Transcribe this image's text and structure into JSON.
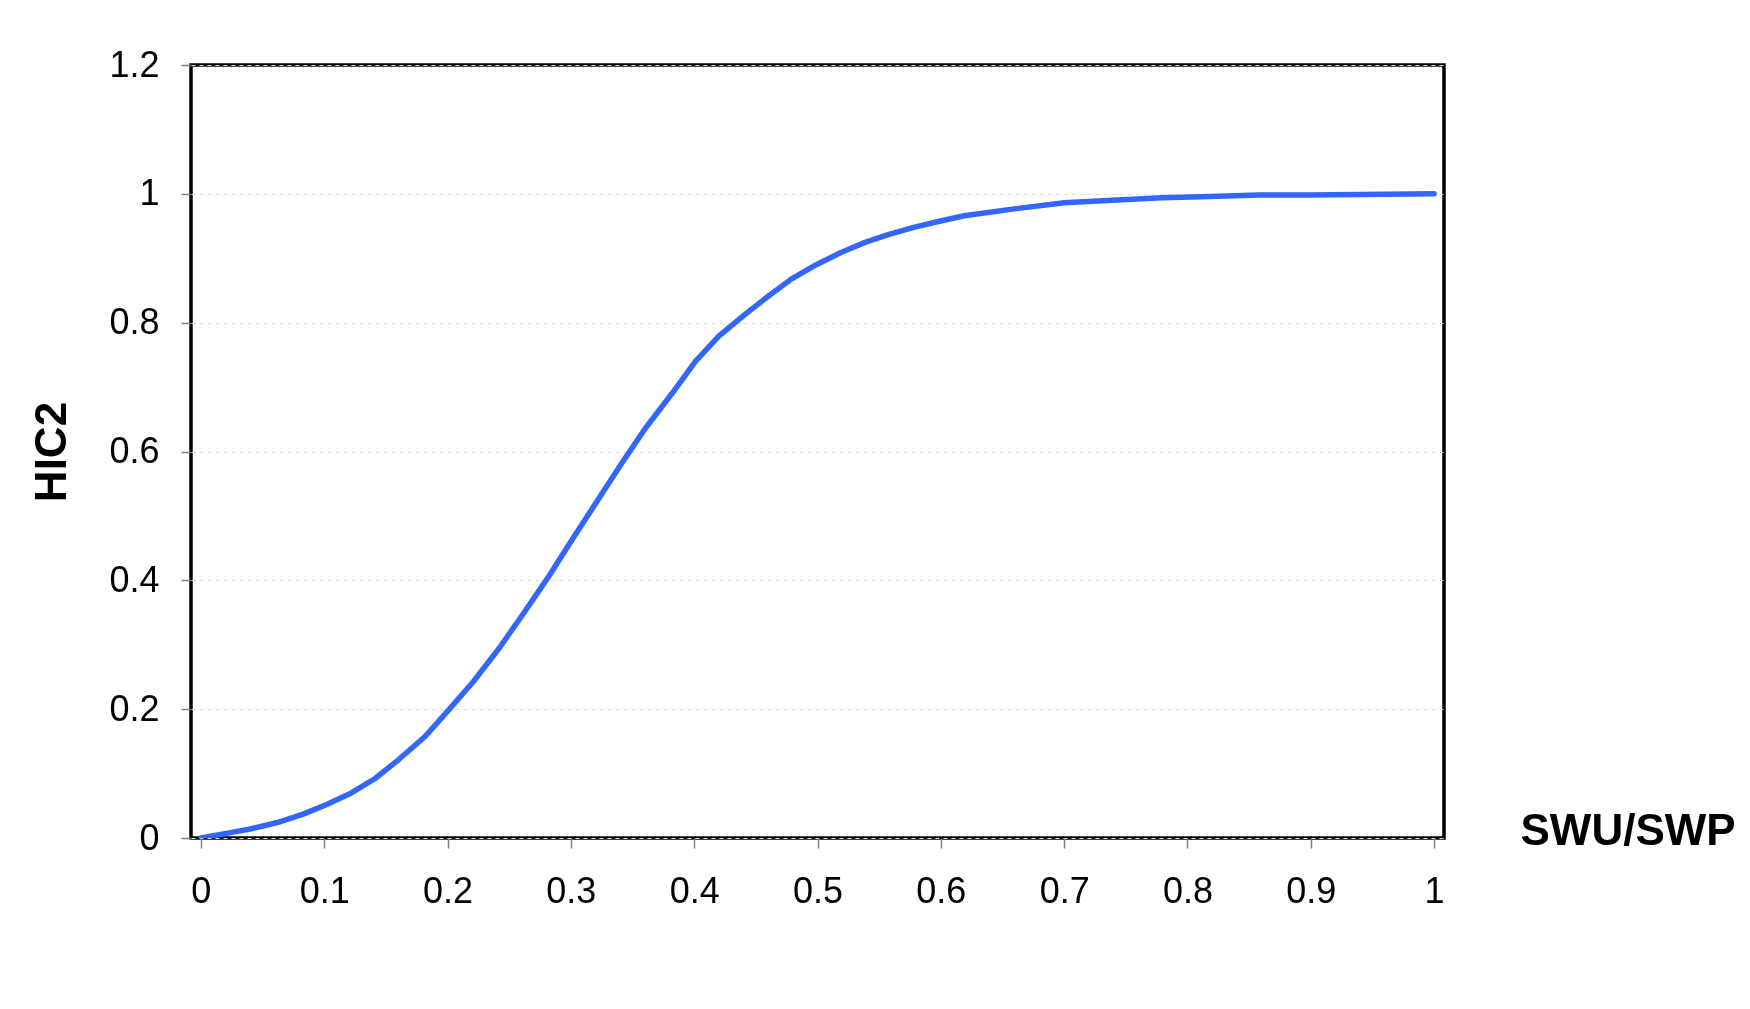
{
  "chart_data": {
    "type": "line",
    "xlabel": "SWU/SWP",
    "ylabel": "HIC2",
    "x": [
      0.0,
      0.023,
      0.04,
      0.062,
      0.083,
      0.102,
      0.122,
      0.141,
      0.16,
      0.182,
      0.201,
      0.221,
      0.242,
      0.261,
      0.281,
      0.302,
      0.322,
      0.341,
      0.36,
      0.382,
      0.401,
      0.42,
      0.44,
      0.46,
      0.479,
      0.499,
      0.519,
      0.539,
      0.558,
      0.578,
      0.598,
      0.619,
      0.661,
      0.7,
      0.739,
      0.779,
      0.818,
      0.858,
      0.897,
      0.94,
      1.0
    ],
    "series": [
      {
        "color": "#3366ff",
        "values": [
          0.0,
          0.008,
          0.014,
          0.024,
          0.037,
          0.052,
          0.07,
          0.092,
          0.121,
          0.158,
          0.199,
          0.243,
          0.295,
          0.347,
          0.403,
          0.466,
          0.525,
          0.581,
          0.635,
          0.69,
          0.74,
          0.779,
          0.811,
          0.841,
          0.868,
          0.89,
          0.909,
          0.925,
          0.937,
          0.948,
          0.957,
          0.966,
          0.977,
          0.986,
          0.99,
          0.994,
          0.996,
          0.998,
          0.998,
          0.999,
          1.0
        ]
      }
    ],
    "xlim": [
      -0.008,
      1.008
    ],
    "xticks": [
      0,
      0.1,
      0.2,
      0.3,
      0.4,
      0.5,
      0.6,
      0.7,
      0.8,
      0.9,
      1
    ],
    "ylim": [
      0,
      1.2
    ],
    "yticks": [
      0,
      0.2,
      0.4,
      0.6,
      0.8,
      1,
      1.2
    ],
    "grid": "y",
    "line_style": "solid"
  }
}
